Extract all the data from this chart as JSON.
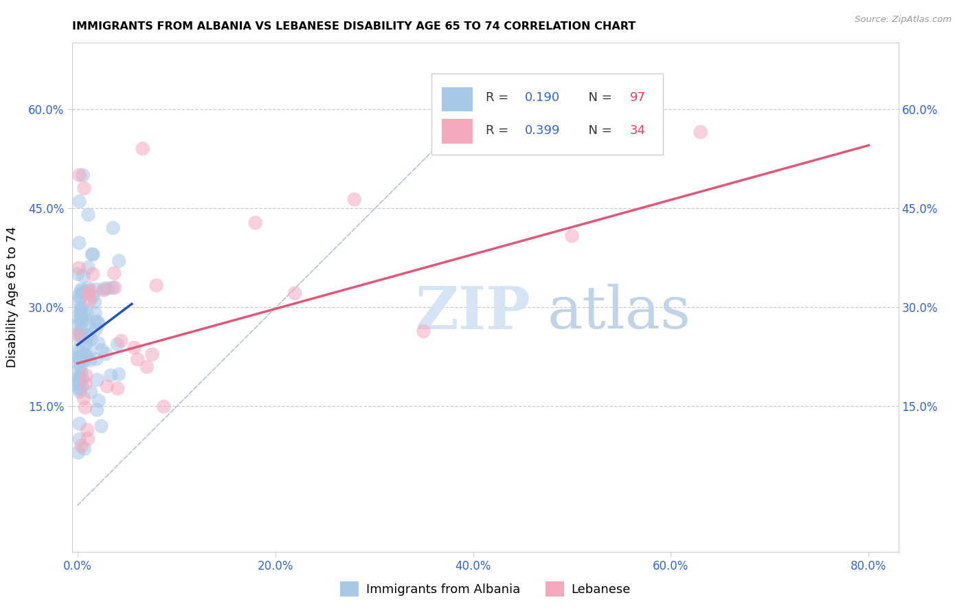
{
  "title": "IMMIGRANTS FROM ALBANIA VS LEBANESE DISABILITY AGE 65 TO 74 CORRELATION CHART",
  "source": "Source: ZipAtlas.com",
  "xlabel_ticks": [
    "0.0%",
    "20.0%",
    "40.0%",
    "60.0%",
    "80.0%"
  ],
  "xlabel_vals": [
    0.0,
    0.2,
    0.4,
    0.6,
    0.8
  ],
  "ylabel_ticks": [
    "15.0%",
    "30.0%",
    "45.0%",
    "60.0%"
  ],
  "ylabel_vals": [
    0.15,
    0.3,
    0.45,
    0.6
  ],
  "ylabel_label": "Disability Age 65 to 74",
  "xlim": [
    -0.005,
    0.83
  ],
  "ylim": [
    -0.07,
    0.7
  ],
  "albania_R": 0.19,
  "albania_N": 97,
  "lebanese_R": 0.399,
  "lebanese_N": 34,
  "albania_color": "#a8c8e8",
  "lebanese_color": "#f4a8bc",
  "albania_line_color": "#2255bb",
  "lebanese_line_color": "#e05878",
  "ref_line_color": "#a0b8d8",
  "legend_R_color": "#3366cc",
  "legend_N_color": "#e04060",
  "watermark_zip": "ZIP",
  "watermark_atlas": "atlas",
  "watermark_color_zip": "#d4e4f4",
  "watermark_color_atlas": "#c0d4e8",
  "albania_line_x0": 0.0,
  "albania_line_x1": 0.055,
  "albania_line_y0": 0.243,
  "albania_line_y1": 0.305,
  "lebanese_line_x0": 0.0,
  "lebanese_line_x1": 0.8,
  "lebanese_line_y0": 0.215,
  "lebanese_line_y1": 0.545,
  "ref_line_x0": 0.0,
  "ref_line_x1": 0.435,
  "ref_line_y0": 0.0,
  "ref_line_y1": 0.65
}
